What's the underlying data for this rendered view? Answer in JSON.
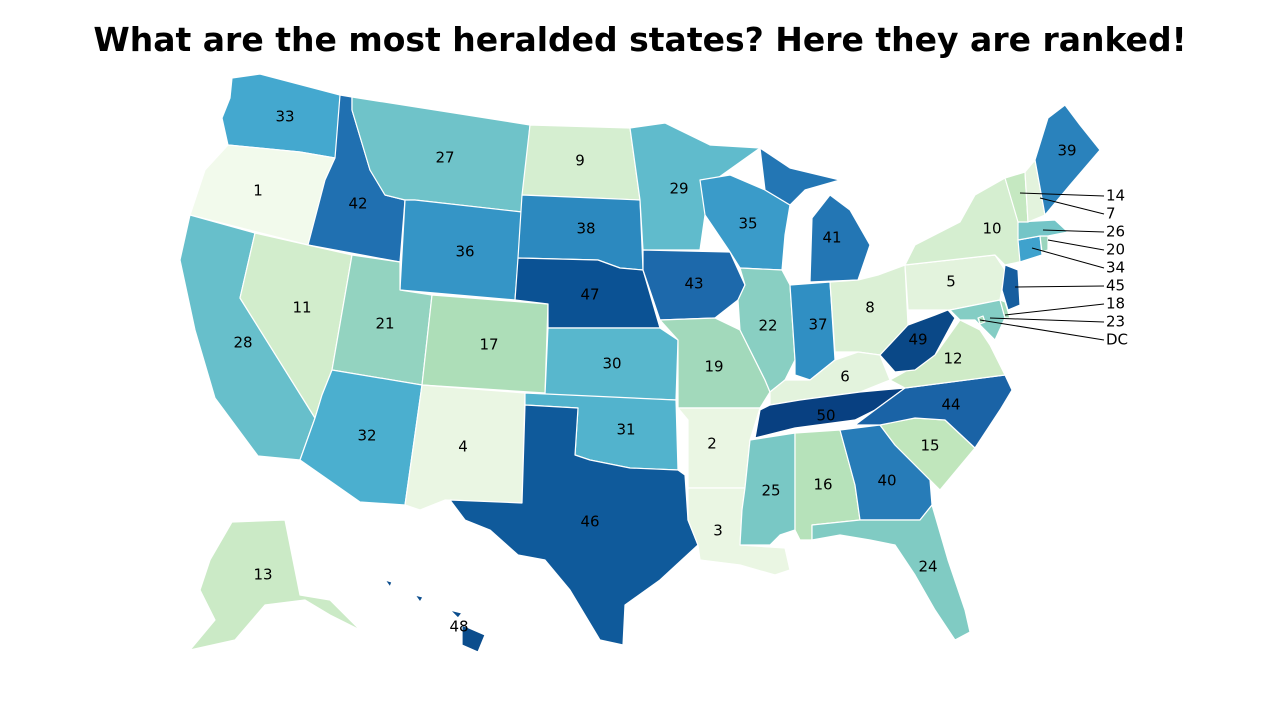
{
  "title": "What are the most heralded states? Here they are ranked!",
  "colors": {
    "1": "#f2faec",
    "2": "#eaf6e3",
    "3": "#eaf6e3",
    "4": "#eaf6e3",
    "5": "#e3f3dd",
    "6": "#e3f3dd",
    "7": "#e3f3dd",
    "8": "#dbf0d5",
    "9": "#d5eed0",
    "10": "#d5eed0",
    "11": "#d2edcc",
    "12": "#cfebc7",
    "13": "#cbeac6",
    "14": "#c5e8c1",
    "15": "#c0e6bc",
    "16": "#b6e2ba",
    "17": "#addeb8",
    "18": "#a6dbb9",
    "19": "#a2d9bb",
    "20": "#99d5bd",
    "21": "#93d3c0",
    "22": "#89cfc2",
    "23": "#84cdc4",
    "24": "#80cbc3",
    "25": "#79c8c5",
    "26": "#74c5c7",
    "27": "#6fc3c9",
    "28": "#67bfcb",
    "29": "#60bbcc",
    "30": "#58b7cd",
    "31": "#52b3cd",
    "32": "#4bafcf",
    "33": "#44a8cf",
    "34": "#3fa2cd",
    "35": "#3a9bc9",
    "36": "#3595c6",
    "37": "#308fc3",
    "38": "#2c89bf",
    "39": "#2a82bc",
    "40": "#277cb8",
    "41": "#2376b4",
    "42": "#2070b1",
    "43": "#1d69ab",
    "44": "#1a63a6",
    "45": "#175e9f",
    "46": "#0f5a9b",
    "47": "#0b5294",
    "48": "#0b4d8d",
    "49": "#0a4887",
    "50": "#084081"
  },
  "states": [
    {
      "id": "OR",
      "rank": 1
    },
    {
      "id": "AR",
      "rank": 2
    },
    {
      "id": "LA",
      "rank": 3
    },
    {
      "id": "NM",
      "rank": 4
    },
    {
      "id": "PA",
      "rank": 5
    },
    {
      "id": "KY",
      "rank": 6
    },
    {
      "id": "NH",
      "rank": 7
    },
    {
      "id": "OH",
      "rank": 8
    },
    {
      "id": "ND",
      "rank": 9
    },
    {
      "id": "NY",
      "rank": 10
    },
    {
      "id": "NV",
      "rank": 11
    },
    {
      "id": "VA",
      "rank": 12
    },
    {
      "id": "AK",
      "rank": 13
    },
    {
      "id": "VT",
      "rank": 14
    },
    {
      "id": "SC",
      "rank": 15
    },
    {
      "id": "AL",
      "rank": 16
    },
    {
      "id": "CO",
      "rank": 17
    },
    {
      "id": "DE",
      "rank": 18
    },
    {
      "id": "MO",
      "rank": 19
    },
    {
      "id": "RI",
      "rank": 20
    },
    {
      "id": "UT",
      "rank": 21
    },
    {
      "id": "IL",
      "rank": 22
    },
    {
      "id": "MD",
      "rank": 23
    },
    {
      "id": "FL",
      "rank": 24
    },
    {
      "id": "MS",
      "rank": 25
    },
    {
      "id": "MA",
      "rank": 26
    },
    {
      "id": "MT",
      "rank": 27
    },
    {
      "id": "CA",
      "rank": 28
    },
    {
      "id": "MN",
      "rank": 29
    },
    {
      "id": "KS",
      "rank": 30
    },
    {
      "id": "OK",
      "rank": 31
    },
    {
      "id": "AZ",
      "rank": 32
    },
    {
      "id": "WA",
      "rank": 33
    },
    {
      "id": "CT",
      "rank": 34
    },
    {
      "id": "WI",
      "rank": 35
    },
    {
      "id": "WY",
      "rank": 36
    },
    {
      "id": "IN",
      "rank": 37
    },
    {
      "id": "SD",
      "rank": 38
    },
    {
      "id": "ME",
      "rank": 39
    },
    {
      "id": "GA",
      "rank": 40
    },
    {
      "id": "MI",
      "rank": 41
    },
    {
      "id": "ID",
      "rank": 42
    },
    {
      "id": "IA",
      "rank": 43
    },
    {
      "id": "NC",
      "rank": 44
    },
    {
      "id": "NJ",
      "rank": 45
    },
    {
      "id": "TX",
      "rank": 46
    },
    {
      "id": "NE",
      "rank": 47
    },
    {
      "id": "HI",
      "rank": 48
    },
    {
      "id": "WV",
      "rank": 49
    },
    {
      "id": "TN",
      "rank": 50
    },
    {
      "id": "DC",
      "rank": 18
    }
  ],
  "callouts": [
    {
      "id": "VT",
      "label": "14"
    },
    {
      "id": "NH",
      "label": "7"
    },
    {
      "id": "MA",
      "label": "26"
    },
    {
      "id": "RI",
      "label": "20"
    },
    {
      "id": "CT",
      "label": "34"
    },
    {
      "id": "NJ",
      "label": "45"
    },
    {
      "id": "DE",
      "label": "18"
    },
    {
      "id": "MD",
      "label": "23"
    },
    {
      "id": "DC",
      "label": "DC"
    }
  ]
}
